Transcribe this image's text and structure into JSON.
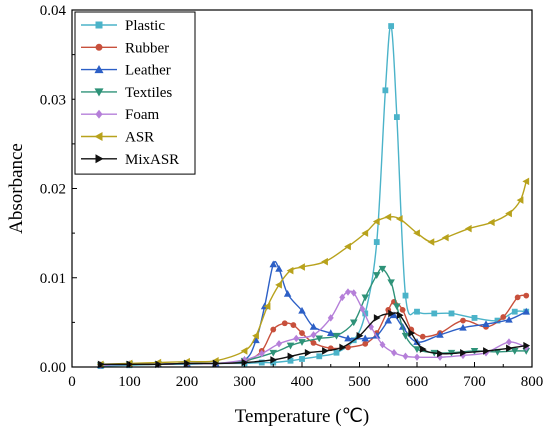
{
  "chart_data": {
    "type": "line",
    "xlabel": "Temperature (℃)",
    "ylabel": "Absorbance",
    "xlim": [
      0,
      800
    ],
    "ylim": [
      0,
      0.04
    ],
    "xticks": [
      "0",
      "100",
      "200",
      "300",
      "400",
      "500",
      "600",
      "700",
      "800"
    ],
    "yticks": [
      "0.00",
      "0.01",
      "0.02",
      "0.03",
      "0.04"
    ],
    "grid": false,
    "legend_position": "top-left",
    "series": [
      {
        "name": "Plastic",
        "color": "#4bb3c9",
        "marker": "square",
        "x": [
          50,
          100,
          150,
          200,
          250,
          300,
          330,
          350,
          380,
          400,
          430,
          460,
          490,
          510,
          530,
          545,
          555,
          565,
          580,
          600,
          630,
          660,
          700,
          740,
          770,
          790
        ],
        "y": [
          0.0001,
          0.0002,
          0.0003,
          0.0003,
          0.0004,
          0.0004,
          0.0005,
          0.0005,
          0.0007,
          0.0009,
          0.0012,
          0.0016,
          0.003,
          0.006,
          0.014,
          0.031,
          0.0382,
          0.028,
          0.008,
          0.0062,
          0.006,
          0.006,
          0.0055,
          0.0052,
          0.0062,
          0.0062
        ]
      },
      {
        "name": "Rubber",
        "color": "#c8503c",
        "marker": "circle",
        "x": [
          50,
          100,
          150,
          200,
          250,
          300,
          330,
          350,
          370,
          385,
          400,
          420,
          450,
          480,
          510,
          530,
          550,
          560,
          575,
          590,
          610,
          640,
          680,
          720,
          750,
          775,
          790
        ],
        "y": [
          0.0002,
          0.0003,
          0.0003,
          0.0004,
          0.0004,
          0.0006,
          0.0018,
          0.0042,
          0.0049,
          0.0047,
          0.0038,
          0.0027,
          0.0021,
          0.0022,
          0.0026,
          0.0038,
          0.0064,
          0.0073,
          0.0064,
          0.0042,
          0.0034,
          0.0038,
          0.0052,
          0.0045,
          0.0056,
          0.0078,
          0.008
        ]
      },
      {
        "name": "Leather",
        "color": "#2c5fc6",
        "marker": "triangle-up",
        "x": [
          50,
          100,
          150,
          200,
          250,
          300,
          320,
          335,
          350,
          360,
          375,
          400,
          420,
          450,
          480,
          510,
          530,
          550,
          560,
          575,
          600,
          640,
          680,
          720,
          760,
          790
        ],
        "y": [
          0.0002,
          0.0003,
          0.0003,
          0.0004,
          0.0004,
          0.0008,
          0.003,
          0.0068,
          0.0115,
          0.011,
          0.0082,
          0.0063,
          0.0045,
          0.0038,
          0.0032,
          0.0032,
          0.0035,
          0.0052,
          0.0058,
          0.0045,
          0.0028,
          0.0036,
          0.0044,
          0.0048,
          0.0053,
          0.0062
        ]
      },
      {
        "name": "Textiles",
        "color": "#2e9278",
        "marker": "triangle-down",
        "x": [
          50,
          100,
          150,
          200,
          250,
          300,
          350,
          380,
          400,
          430,
          460,
          490,
          510,
          530,
          540,
          555,
          565,
          580,
          600,
          630,
          660,
          700,
          740,
          770,
          790
        ],
        "y": [
          0.0002,
          0.0003,
          0.0003,
          0.0004,
          0.0004,
          0.0007,
          0.0016,
          0.0024,
          0.0028,
          0.0032,
          0.0035,
          0.005,
          0.0078,
          0.0103,
          0.011,
          0.0095,
          0.0068,
          0.0035,
          0.002,
          0.0016,
          0.0016,
          0.0018,
          0.0017,
          0.0018,
          0.0018
        ]
      },
      {
        "name": "Foam",
        "color": "#b57fd9",
        "marker": "diamond",
        "x": [
          50,
          100,
          150,
          200,
          250,
          300,
          330,
          360,
          390,
          420,
          450,
          470,
          480,
          490,
          505,
          520,
          540,
          560,
          580,
          600,
          640,
          680,
          720,
          760,
          790
        ],
        "y": [
          0.0002,
          0.0003,
          0.0003,
          0.0004,
          0.0004,
          0.0008,
          0.0015,
          0.0026,
          0.0032,
          0.0036,
          0.0055,
          0.0078,
          0.0084,
          0.0083,
          0.0065,
          0.0045,
          0.0025,
          0.0016,
          0.0012,
          0.0011,
          0.0011,
          0.0013,
          0.0016,
          0.0028,
          0.0022
        ]
      },
      {
        "name": "ASR",
        "color": "#b8a21c",
        "marker": "triangle-left",
        "x": [
          50,
          100,
          150,
          200,
          250,
          300,
          320,
          340,
          360,
          380,
          400,
          440,
          480,
          510,
          530,
          550,
          570,
          600,
          625,
          650,
          690,
          730,
          760,
          780,
          790
        ],
        "y": [
          0.0003,
          0.0004,
          0.0005,
          0.0006,
          0.0007,
          0.0018,
          0.0035,
          0.0068,
          0.0092,
          0.0108,
          0.0112,
          0.0118,
          0.0135,
          0.015,
          0.0163,
          0.0168,
          0.0166,
          0.015,
          0.014,
          0.0145,
          0.0155,
          0.0162,
          0.0172,
          0.0187,
          0.0208
        ]
      },
      {
        "name": "MixASR",
        "color": "#111111",
        "marker": "triangle-right",
        "x": [
          50,
          100,
          150,
          200,
          250,
          300,
          350,
          380,
          410,
          440,
          470,
          500,
          530,
          555,
          570,
          590,
          610,
          640,
          680,
          720,
          760,
          790
        ],
        "y": [
          0.0003,
          0.0003,
          0.0003,
          0.0004,
          0.0004,
          0.0005,
          0.0008,
          0.0012,
          0.0016,
          0.0018,
          0.0022,
          0.0035,
          0.0055,
          0.006,
          0.0058,
          0.0038,
          0.002,
          0.0015,
          0.0016,
          0.0018,
          0.0021,
          0.0024
        ]
      }
    ]
  }
}
